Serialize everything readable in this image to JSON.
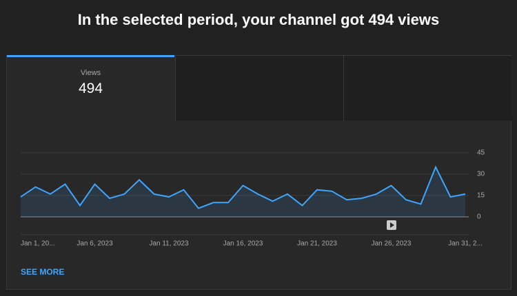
{
  "title": "In the selected period, your channel got 494 views",
  "tabs": [
    {
      "label": "Views",
      "value": 494
    }
  ],
  "chart_data": {
    "type": "line",
    "color": "#3ea6ff",
    "categories": [
      "Jan 1, 20...",
      null,
      null,
      null,
      null,
      "Jan 6, 2023",
      null,
      null,
      null,
      null,
      "Jan 11, 2023",
      null,
      null,
      null,
      null,
      "Jan 16, 2023",
      null,
      null,
      null,
      null,
      "Jan 21, 2023",
      null,
      null,
      null,
      null,
      "Jan 26, 2023",
      null,
      null,
      null,
      null,
      "Jan 31, 2..."
    ],
    "values": [
      14,
      21,
      16,
      23,
      8,
      23,
      13,
      16,
      26,
      16,
      14,
      19,
      6,
      10,
      10,
      22,
      16,
      11,
      16,
      8,
      19,
      18,
      12,
      13,
      16,
      22,
      12,
      9,
      35,
      14,
      16
    ],
    "ylim": [
      0,
      45
    ],
    "yticks": [
      0,
      15,
      30,
      45
    ],
    "grid": true
  },
  "see_more": "SEE MORE"
}
